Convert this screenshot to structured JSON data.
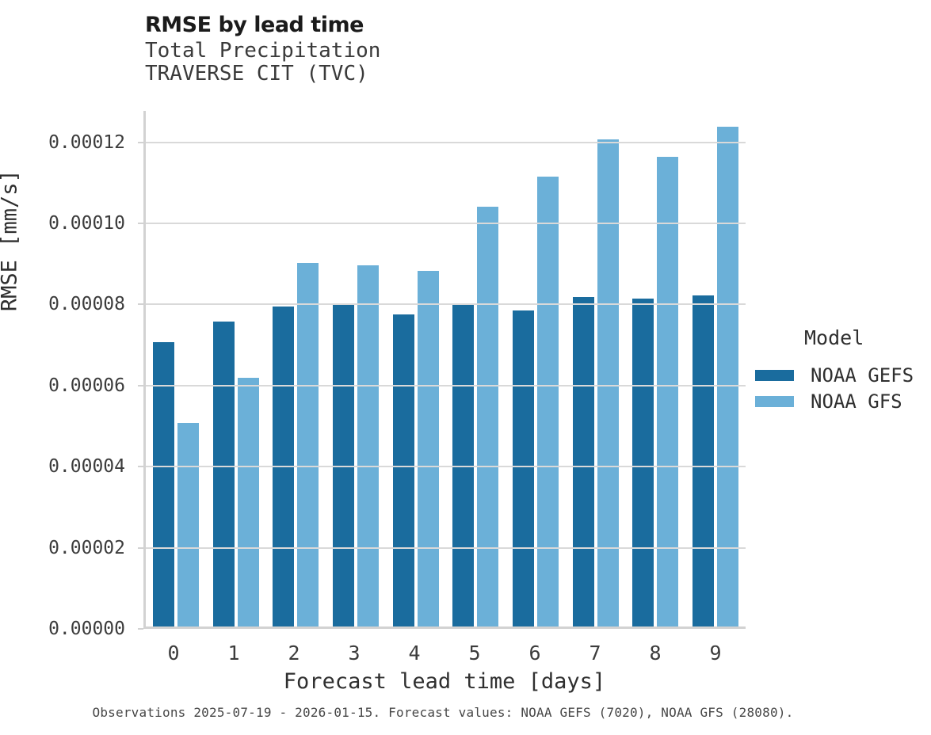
{
  "chart_data": {
    "type": "bar",
    "title": "RMSE by lead time",
    "subtitle_line1": "Total Precipitation",
    "subtitle_line2": "TRAVERSE CIT (TVC)",
    "xlabel": "Forecast lead time [days]",
    "ylabel": "RMSE [mm/s]",
    "categories": [
      "0",
      "1",
      "2",
      "3",
      "4",
      "5",
      "6",
      "7",
      "8",
      "9"
    ],
    "series": [
      {
        "name": "NOAA GEFS",
        "color": "#1a6c9e",
        "values": [
          7.02e-05,
          7.52e-05,
          7.9e-05,
          7.96e-05,
          7.7e-05,
          7.93e-05,
          7.8e-05,
          8.13e-05,
          8.08e-05,
          8.16e-05
        ]
      },
      {
        "name": "NOAA GFS",
        "color": "#6bb0d8",
        "values": [
          5.02e-05,
          6.13e-05,
          8.96e-05,
          8.9e-05,
          8.76e-05,
          0.0001036,
          0.000111,
          0.0001202,
          0.0001159,
          0.0001232
        ]
      }
    ],
    "ylim": [
      0,
      0.00012773
    ],
    "yticks": [
      {
        "value": 0.0,
        "label": "0.00000"
      },
      {
        "value": 2e-05,
        "label": "0.00002"
      },
      {
        "value": 4e-05,
        "label": "0.00004"
      },
      {
        "value": 6e-05,
        "label": "0.00006"
      },
      {
        "value": 8e-05,
        "label": "0.00008"
      },
      {
        "value": 0.0001,
        "label": "0.00010"
      },
      {
        "value": 0.00012,
        "label": "0.00012"
      }
    ],
    "grid": "horizontal",
    "legend": {
      "title": "Model",
      "position": "right"
    },
    "caption": "Observations 2025-07-19 - 2026-01-15. Forecast values: NOAA GEFS (7020), NOAA GFS (28080)."
  }
}
